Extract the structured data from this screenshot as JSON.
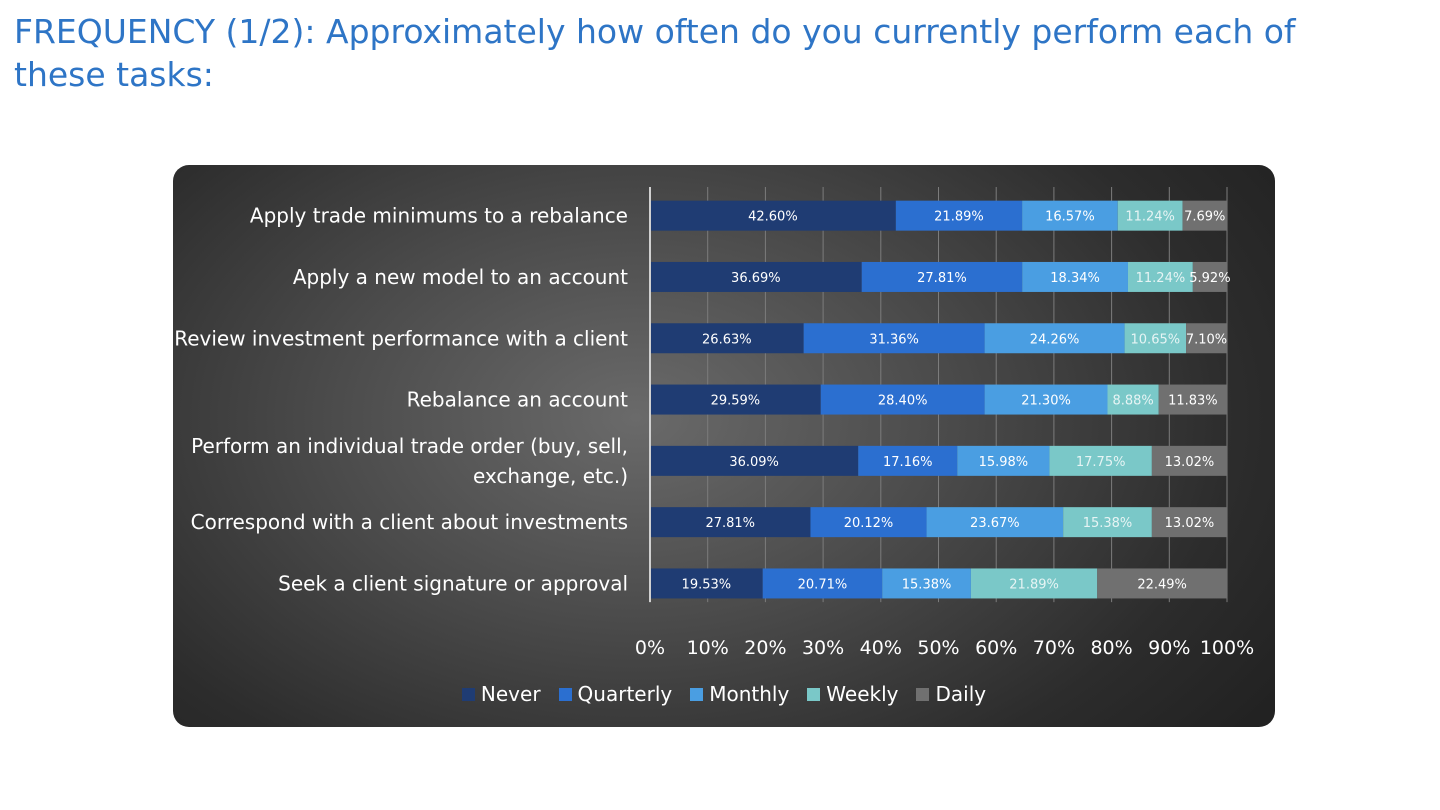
{
  "title": "FREQUENCY (1/2): Approximately how often do you currently perform each of these tasks:",
  "chart_data": {
    "type": "bar",
    "orientation": "horizontal",
    "stacked": "percent",
    "categories": [
      [
        "Apply trade minimums to a rebalance"
      ],
      [
        "Apply a new model to an account"
      ],
      [
        "Review investment performance with a client"
      ],
      [
        "Rebalance an account"
      ],
      [
        "Perform an individual trade order (buy, sell,",
        "exchange, etc.)"
      ],
      [
        "Correspond with a client about investments"
      ],
      [
        "Seek a client signature or approval"
      ]
    ],
    "series": [
      {
        "name": "Never",
        "color": "#1f3c73",
        "label_color": "#ffffff",
        "values": [
          42.6,
          36.69,
          26.63,
          29.59,
          36.09,
          27.81,
          19.53
        ],
        "labels": [
          "42.60%",
          "36.69%",
          "26.63%",
          "29.59%",
          "36.09%",
          "27.81%",
          "19.53%"
        ]
      },
      {
        "name": "Quarterly",
        "color": "#2b6fd0",
        "label_color": "#ffffff",
        "values": [
          21.89,
          27.81,
          31.36,
          28.4,
          17.16,
          20.12,
          20.71
        ],
        "labels": [
          "21.89%",
          "27.81%",
          "31.36%",
          "28.40%",
          "17.16%",
          "20.12%",
          "20.71%"
        ]
      },
      {
        "name": "Monthly",
        "color": "#4a9ee2",
        "label_color": "#ffffff",
        "values": [
          16.57,
          18.34,
          24.26,
          21.3,
          15.98,
          23.67,
          15.38
        ],
        "labels": [
          "16.57%",
          "18.34%",
          "24.26%",
          "21.30%",
          "15.98%",
          "23.67%",
          "15.38%"
        ]
      },
      {
        "name": "Weekly",
        "color": "#7ac8c8",
        "label_color": "#e6f4f4",
        "values": [
          11.24,
          11.24,
          10.65,
          8.88,
          17.75,
          15.38,
          21.89
        ],
        "labels": [
          "11.24%",
          "11.24%",
          "10.65%",
          "8.88%",
          "17.75%",
          "15.38%",
          "21.89%"
        ]
      },
      {
        "name": "Daily",
        "color": "#707070",
        "label_color": "#ffffff",
        "values": [
          7.69,
          5.92,
          7.1,
          11.83,
          13.02,
          13.02,
          22.49
        ],
        "labels": [
          "7.69%",
          "5.92%",
          "7.10%",
          "11.83%",
          "13.02%",
          "13.02%",
          "22.49%"
        ]
      }
    ],
    "xlim": [
      0,
      100
    ],
    "x_ticks": [
      "0%",
      "10%",
      "20%",
      "30%",
      "40%",
      "50%",
      "60%",
      "70%",
      "80%",
      "90%",
      "100%"
    ],
    "grid": true,
    "legend_position": "bottom"
  },
  "colors": {
    "title": "#2e75c6",
    "panel": "#4b4b4b"
  }
}
